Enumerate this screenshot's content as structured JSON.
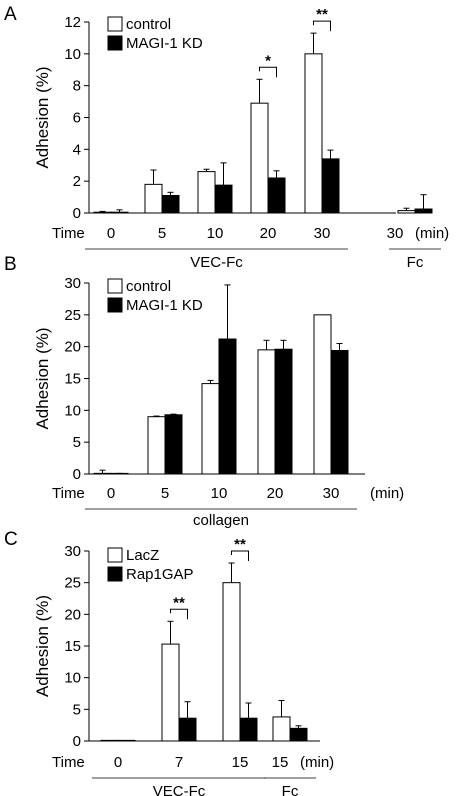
{
  "chart_data": [
    {
      "panel": "A",
      "type": "bar",
      "ylabel": "Adhesion (%)",
      "xlabel": "Time",
      "x_unit": "(min)",
      "ylim": [
        0,
        12
      ],
      "yticks": [
        "0",
        "2",
        "4",
        "6",
        "8",
        "10",
        "12"
      ],
      "categories": [
        "0",
        "5",
        "10",
        "20",
        "30",
        "30"
      ],
      "groups": [
        {
          "label": "VEC-Fc",
          "from": 0,
          "to": 4
        },
        {
          "label": "Fc",
          "from": 5,
          "to": 5
        }
      ],
      "series": [
        {
          "name": "control",
          "color": "#ffffff",
          "values": [
            0.05,
            1.8,
            2.6,
            6.9,
            10.0,
            0.15
          ],
          "errors": [
            0.05,
            0.9,
            0.15,
            1.5,
            1.3,
            0.15
          ]
        },
        {
          "name": "MAGI-1 KD",
          "color": "#000000",
          "values": [
            0.05,
            1.1,
            1.75,
            2.2,
            3.4,
            0.25
          ],
          "errors": [
            0.15,
            0.2,
            1.4,
            0.45,
            0.55,
            0.9
          ]
        }
      ],
      "significance": [
        {
          "category": 3,
          "label": "*"
        },
        {
          "category": 4,
          "label": "**"
        }
      ]
    },
    {
      "panel": "B",
      "type": "bar",
      "ylabel": "Adhesion (%)",
      "xlabel": "Time",
      "x_unit": "(min)",
      "ylim": [
        0,
        30
      ],
      "yticks": [
        "0",
        "5",
        "10",
        "15",
        "20",
        "25",
        "30"
      ],
      "categories": [
        "0",
        "5",
        "10",
        "20",
        "30"
      ],
      "groups": [
        {
          "label": "collagen",
          "from": 0,
          "to": 4
        }
      ],
      "series": [
        {
          "name": "control",
          "color": "#ffffff",
          "values": [
            0.1,
            9.0,
            14.2,
            19.5,
            25.0
          ],
          "errors": [
            0.5,
            0.1,
            0.5,
            1.5,
            0.0
          ]
        },
        {
          "name": "MAGI-1 KD",
          "color": "#000000",
          "values": [
            0.05,
            9.3,
            21.2,
            19.6,
            19.4
          ],
          "errors": [
            0.05,
            0.1,
            8.5,
            1.4,
            1.1
          ]
        }
      ],
      "significance": []
    },
    {
      "panel": "C",
      "type": "bar",
      "ylabel": "Adhesion (%)",
      "xlabel": "Time",
      "x_unit": "(min)",
      "ylim": [
        0,
        30
      ],
      "yticks": [
        "0",
        "5",
        "10",
        "15",
        "20",
        "25",
        "30"
      ],
      "categories": [
        "0",
        "7",
        "15",
        "15"
      ],
      "groups": [
        {
          "label": "VEC-Fc",
          "from": 0,
          "to": 2
        },
        {
          "label": "Fc",
          "from": 3,
          "to": 3
        }
      ],
      "series": [
        {
          "name": "LacZ",
          "color": "#ffffff",
          "values": [
            0.1,
            15.3,
            25.0,
            3.8
          ],
          "errors": [
            0.0,
            3.6,
            3.1,
            2.6
          ]
        },
        {
          "name": "Rap1GAP",
          "color": "#000000",
          "values": [
            0.1,
            3.6,
            3.6,
            2.0
          ],
          "errors": [
            0.0,
            2.6,
            2.4,
            0.4
          ]
        }
      ],
      "significance": [
        {
          "category": 1,
          "label": "**"
        },
        {
          "category": 2,
          "label": "**"
        }
      ]
    }
  ]
}
